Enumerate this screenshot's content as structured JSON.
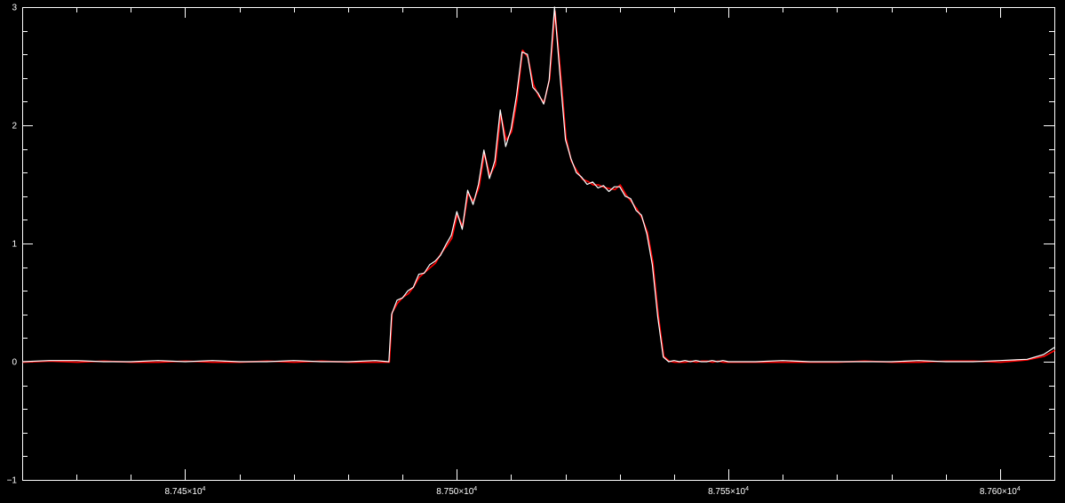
{
  "chart_data": {
    "type": "line",
    "title": "",
    "xlabel": "",
    "ylabel": "",
    "xlim": [
      87420,
      87610
    ],
    "ylim": [
      -1,
      3
    ],
    "grid": false,
    "legend": "none",
    "colors": {
      "background": "#000000",
      "axes": "#ffffff",
      "series_model": "#ff0000",
      "series_data": "#ffffff"
    },
    "x_ticks": [
      {
        "value": 87450,
        "mantissa": "8.745×10",
        "exp": "4"
      },
      {
        "value": 87500,
        "mantissa": "8.750×10",
        "exp": "4"
      },
      {
        "value": 87550,
        "mantissa": "8.755×10",
        "exp": "4"
      },
      {
        "value": 87600,
        "mantissa": "8.760×10",
        "exp": "4"
      }
    ],
    "y_ticks": [
      {
        "value": -1,
        "label": "−1"
      },
      {
        "value": 0,
        "label": "0"
      },
      {
        "value": 1,
        "label": "1"
      },
      {
        "value": 2,
        "label": "2"
      },
      {
        "value": 3,
        "label": "3"
      }
    ],
    "series": [
      {
        "role": "model",
        "x": [
          87420,
          87425,
          87430,
          87435,
          87440,
          87445,
          87450,
          87455,
          87460,
          87465,
          87470,
          87475,
          87480,
          87485,
          87487.5,
          87488,
          87489,
          87490,
          87491,
          87492,
          87493,
          87494,
          87495,
          87496,
          87497,
          87498,
          87499,
          87500,
          87501,
          87502,
          87503,
          87504,
          87505,
          87506,
          87507,
          87508,
          87509,
          87510,
          87511,
          87512,
          87513,
          87514,
          87515,
          87516,
          87517,
          87518,
          87519,
          87520,
          87521,
          87522,
          87523,
          87524,
          87525,
          87526,
          87527,
          87528,
          87529,
          87530,
          87531,
          87532,
          87533,
          87534,
          87535,
          87536,
          87537,
          87538,
          87539,
          87540,
          87541,
          87542,
          87543,
          87544,
          87545,
          87546,
          87547,
          87548,
          87549,
          87550,
          87550.3,
          87551,
          87555,
          87560,
          87565,
          87570,
          87575,
          87580,
          87585,
          87590,
          87595,
          87600,
          87605,
          87608,
          87610
        ],
        "y": [
          0.0,
          0.01,
          0.0,
          0.01,
          0.0,
          0.0,
          0.01,
          0.0,
          0.0,
          0.01,
          0.0,
          0.01,
          0.0,
          0.0,
          0.0,
          0.42,
          0.5,
          0.55,
          0.58,
          0.64,
          0.72,
          0.76,
          0.8,
          0.84,
          0.92,
          0.98,
          1.05,
          1.25,
          1.15,
          1.43,
          1.36,
          1.48,
          1.77,
          1.58,
          1.67,
          2.1,
          1.88,
          1.95,
          2.22,
          2.64,
          2.58,
          2.35,
          2.25,
          2.2,
          2.4,
          2.97,
          2.45,
          1.9,
          1.7,
          1.62,
          1.55,
          1.53,
          1.5,
          1.5,
          1.48,
          1.47,
          1.46,
          1.5,
          1.42,
          1.36,
          1.3,
          1.22,
          1.1,
          0.85,
          0.4,
          0.05,
          0.01,
          0.0,
          0.0,
          0.0,
          0.01,
          0.0,
          0.01,
          0.01,
          0.0,
          0.01,
          0.0,
          0.0,
          0.0,
          0.0,
          0.0,
          0.0,
          0.0,
          0.0,
          0.01,
          0.0,
          0.0,
          0.01,
          0.01,
          0.0,
          0.02,
          0.05,
          0.1
        ]
      },
      {
        "role": "data",
        "x": [
          87420,
          87425,
          87430,
          87435,
          87440,
          87445,
          87450,
          87455,
          87460,
          87465,
          87470,
          87475,
          87480,
          87485,
          87487.5,
          87488,
          87489,
          87490,
          87491,
          87492,
          87493,
          87494,
          87495,
          87496,
          87497,
          87498,
          87499,
          87500,
          87501,
          87502,
          87503,
          87504,
          87505,
          87506,
          87507,
          87508,
          87509,
          87510,
          87511,
          87512,
          87513,
          87514,
          87515,
          87516,
          87517,
          87518,
          87519,
          87520,
          87521,
          87522,
          87523,
          87524,
          87525,
          87526,
          87527,
          87528,
          87529,
          87530,
          87531,
          87532,
          87533,
          87534,
          87535,
          87536,
          87537,
          87538,
          87539,
          87540,
          87541,
          87542,
          87543,
          87544,
          87545,
          87546,
          87547,
          87548,
          87549,
          87550,
          87550.3,
          87551,
          87555,
          87560,
          87565,
          87570,
          87575,
          87580,
          87585,
          87590,
          87595,
          87600,
          87605,
          87608,
          87610
        ],
        "y": [
          0.0,
          0.01,
          0.01,
          0.0,
          0.0,
          0.01,
          0.0,
          0.01,
          0.0,
          0.0,
          0.01,
          0.0,
          0.0,
          0.01,
          0.0,
          0.4,
          0.52,
          0.54,
          0.6,
          0.63,
          0.74,
          0.75,
          0.82,
          0.85,
          0.9,
          0.99,
          1.07,
          1.27,
          1.12,
          1.45,
          1.33,
          1.5,
          1.79,
          1.55,
          1.7,
          2.13,
          1.82,
          1.97,
          2.25,
          2.62,
          2.6,
          2.32,
          2.27,
          2.18,
          2.38,
          3.0,
          2.42,
          1.88,
          1.72,
          1.6,
          1.56,
          1.5,
          1.52,
          1.47,
          1.49,
          1.44,
          1.48,
          1.48,
          1.4,
          1.38,
          1.28,
          1.24,
          1.08,
          0.82,
          0.38,
          0.04,
          0.0,
          0.01,
          0.0,
          0.01,
          0.0,
          0.01,
          0.0,
          0.0,
          0.01,
          0.0,
          0.01,
          0.0,
          0.0,
          0.0,
          0.0,
          0.01,
          0.0,
          0.0,
          0.0,
          0.0,
          0.01,
          0.0,
          0.0,
          0.01,
          0.02,
          0.06,
          0.12
        ]
      }
    ]
  }
}
